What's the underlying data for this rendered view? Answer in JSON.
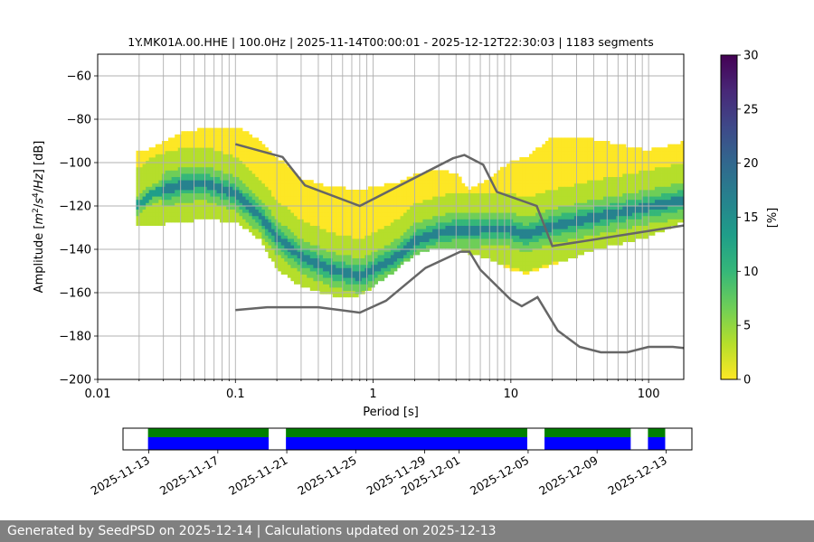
{
  "footer_text": "Generated by SeedPSD on 2025-12-14 | Calculations updated on 2025-12-13",
  "colors": {
    "ppsd_colormap": [
      "#fde725",
      "#b5de2b",
      "#6ece58",
      "#35b779",
      "#1f9e89",
      "#26828e",
      "#31688e",
      "#3e4989",
      "#482878",
      "#440154"
    ],
    "model_lines": "#666666",
    "coverage_data": "#0000ff",
    "coverage_used": "#008000",
    "grid": "#b0b0b0"
  },
  "chart_data": [
    {
      "type": "heatmap",
      "title": "1Y.MK01A.00.HHE | 100.0Hz | 2025-11-14T00:00:01 - 2025-12-12T22:30:03 | 1183 segments",
      "xlabel": "Period [s]",
      "ylabel_parts": [
        "Amplitude [",
        "m",
        "2",
        "/",
        "s",
        "4",
        "/",
        "Hz",
        "] [dB]"
      ],
      "x_scale": "log",
      "xlim": [
        0.01,
        180
      ],
      "ylim": [
        -200,
        -50
      ],
      "x_major_ticks": [
        0.01,
        0.1,
        1,
        10,
        100
      ],
      "x_tick_labels": [
        "0.01",
        "0.1",
        "1",
        "10",
        "100"
      ],
      "y_ticks": [
        -200,
        -180,
        -160,
        -140,
        -120,
        -100,
        -80,
        -60
      ],
      "y_tick_labels": [
        "−200",
        "−180",
        "−160",
        "−140",
        "−120",
        "−100",
        "−80",
        "−60"
      ],
      "grid": true,
      "colorbar": {
        "label": "[%]",
        "range": [
          0,
          30
        ],
        "ticks": [
          0,
          5,
          10,
          15,
          20,
          25,
          30
        ],
        "tick_labels": [
          "0",
          "5",
          "10",
          "15",
          "20",
          "25",
          "30"
        ]
      },
      "noise_models": [
        {
          "name": "NHNM",
          "points": [
            [
              0.1,
              -91.5
            ],
            [
              0.22,
              -97.4
            ],
            [
              0.32,
              -110.5
            ],
            [
              0.8,
              -120
            ],
            [
              3.8,
              -98
            ],
            [
              4.6,
              -96.5
            ],
            [
              6.3,
              -101
            ],
            [
              7.9,
              -113.5
            ],
            [
              15.4,
              -120
            ],
            [
              20,
              -138.5
            ],
            [
              180,
              -129
            ]
          ]
        },
        {
          "name": "NLNM",
          "points": [
            [
              0.1,
              -168
            ],
            [
              0.17,
              -166.7
            ],
            [
              0.4,
              -166.7
            ],
            [
              0.8,
              -169.2
            ],
            [
              1.24,
              -163.7
            ],
            [
              2.4,
              -148.6
            ],
            [
              4.3,
              -141.1
            ],
            [
              5.0,
              -141.1
            ],
            [
              6.0,
              -149.4
            ],
            [
              10,
              -163.3
            ],
            [
              12,
              -166.2
            ],
            [
              15.6,
              -162.1
            ],
            [
              21.9,
              -177.5
            ],
            [
              31.6,
              -185
            ],
            [
              45,
              -187.5
            ],
            [
              70,
              -187.5
            ],
            [
              100,
              -185
            ],
            [
              150,
              -185
            ],
            [
              180,
              -185.5
            ]
          ]
        }
      ],
      "psd_mode_curve": [
        [
          0.019,
          -121
        ],
        [
          0.025,
          -115
        ],
        [
          0.04,
          -111
        ],
        [
          0.06,
          -110
        ],
        [
          0.1,
          -115
        ],
        [
          0.15,
          -125
        ],
        [
          0.2,
          -135
        ],
        [
          0.3,
          -144
        ],
        [
          0.5,
          -150
        ],
        [
          0.8,
          -153
        ],
        [
          1.0,
          -150
        ],
        [
          1.5,
          -144
        ],
        [
          2.0,
          -137
        ],
        [
          3.0,
          -133
        ],
        [
          4.0,
          -131.5
        ],
        [
          5.0,
          -132
        ],
        [
          7.0,
          -131
        ],
        [
          10,
          -131.5
        ],
        [
          13,
          -134
        ],
        [
          20,
          -130
        ],
        [
          40,
          -126
        ],
        [
          100,
          -121
        ],
        [
          180,
          -118
        ]
      ],
      "psd_envelope": {
        "period": [
          0.019,
          0.025,
          0.04,
          0.06,
          0.1,
          0.15,
          0.2,
          0.3,
          0.5,
          0.8,
          1.0,
          1.5,
          2.0,
          3.0,
          4.0,
          5.0,
          7.0,
          10,
          13,
          20,
          40,
          100,
          180
        ],
        "upper_db": [
          -96,
          -94,
          -87,
          -85,
          -84,
          -90,
          -98,
          -108,
          -112,
          -113,
          -112,
          -110,
          -106,
          -104,
          -106,
          -113,
          -108,
          -100,
          -98,
          -89,
          -90,
          -95,
          -91
        ],
        "lower_db": [
          -129,
          -130,
          -128,
          -127,
          -128,
          -136,
          -150,
          -158,
          -162,
          -162,
          -158,
          -150,
          -143,
          -140,
          -140,
          -143,
          -145,
          -150,
          -152,
          -148,
          -141,
          -135,
          -128
        ]
      }
    },
    {
      "type": "timeline",
      "x_labels": [
        "2025-11-13",
        "2025-11-17",
        "2025-11-21",
        "2025-11-25",
        "2025-11-29",
        "2025-12-01",
        "2025-12-05",
        "2025-12-09",
        "2025-12-13"
      ],
      "data_available": [
        [
          "2025-11-14",
          "2025-11-21"
        ],
        [
          "2025-11-22",
          "2025-12-06"
        ],
        [
          "2025-12-07",
          "2025-12-12"
        ],
        [
          "2025-12-13",
          "2025-12-14"
        ]
      ],
      "used_in_calculation": [
        [
          "2025-11-14",
          "2025-11-21"
        ],
        [
          "2025-11-22",
          "2025-12-06"
        ],
        [
          "2025-12-07",
          "2025-12-12"
        ],
        [
          "2025-12-13",
          "2025-12-14"
        ]
      ]
    }
  ]
}
